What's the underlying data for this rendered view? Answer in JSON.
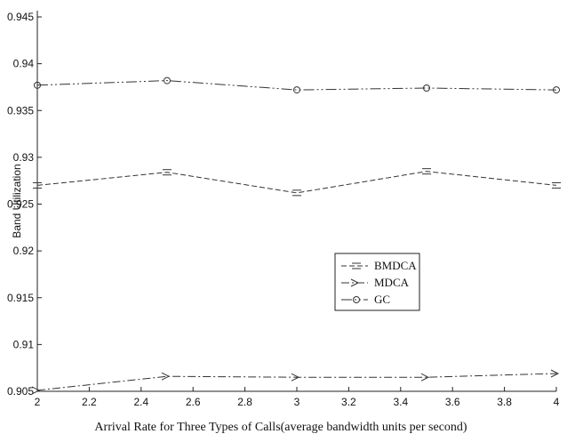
{
  "chart_data": {
    "type": "line",
    "title": "",
    "xlabel": "Arrival Rate for Three Types of Calls(average bandwidth units per second)",
    "ylabel": "Band Utilization",
    "xlim": [
      2,
      4
    ],
    "ylim": [
      0.905,
      0.945
    ],
    "xticks": [
      "2",
      "2.2",
      "2.4",
      "2.6",
      "2.8",
      "3",
      "3.2",
      "3.4",
      "3.6",
      "3.8",
      "4"
    ],
    "yticks": [
      "0.905",
      "0.91",
      "0.915",
      "0.92",
      "0.925",
      "0.93",
      "0.935",
      "0.94",
      "0.945"
    ],
    "grid": false,
    "legend_position": "center-right",
    "x": [
      2,
      2.5,
      3,
      3.5,
      4
    ],
    "series": [
      {
        "name": "BMDCA",
        "values": [
          0.927,
          0.9284,
          0.9262,
          0.9285,
          0.927
        ],
        "marker": "bar",
        "dash": "6,3"
      },
      {
        "name": "MDCA",
        "values": [
          0.9051,
          0.9066,
          0.9065,
          0.9065,
          0.9069
        ],
        "marker": "arrow",
        "dash": "9,3,2,3"
      },
      {
        "name": "GC",
        "values": [
          0.9377,
          0.9382,
          0.9372,
          0.9374,
          0.9372
        ],
        "marker": "circle",
        "dash": "12,3,2,3,2,3"
      }
    ]
  }
}
